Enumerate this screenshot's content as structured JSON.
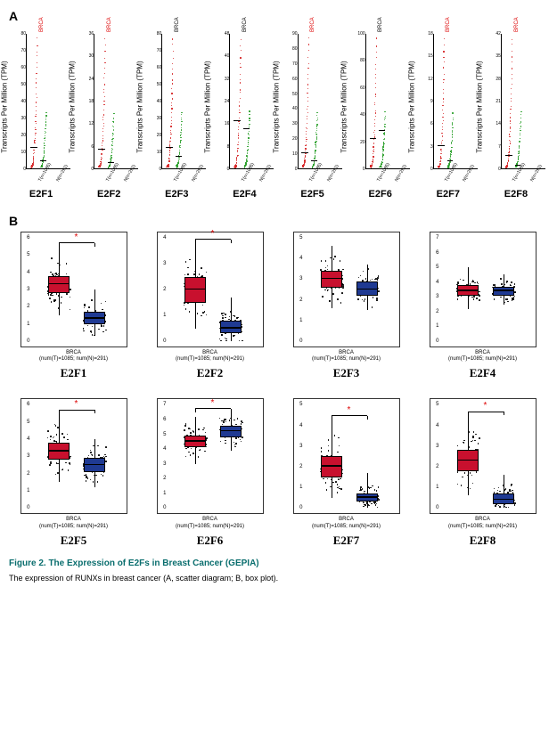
{
  "figure": {
    "title": "Figure 2. The Expression of E2Fs in Breast Cancer (GEPIA)",
    "description": "The expression of RUNXs in breast cancer (A, scatter diagram; B, box plot).",
    "title_color": "#0a6e6e"
  },
  "panelA": {
    "label": "A",
    "ylabel": "Transcripts Per Million (TPM)",
    "top_dataset": "BRCA",
    "xlabels": [
      "T(n=1085)",
      "N(n=291)"
    ],
    "tumor_color": "#d62728",
    "normal_color": "#2ca02c",
    "plots": [
      {
        "gene": "E2F1",
        "ymax": 80,
        "ystep": 10,
        "top_label_color": "#d00",
        "t_median": 12,
        "n_median": 4
      },
      {
        "gene": "E2F2",
        "ymax": 36,
        "ystep": 6,
        "top_label_color": "#d00",
        "t_median": 5,
        "n_median": 1.5
      },
      {
        "gene": "E2F3",
        "ymax": 80,
        "ystep": 10,
        "top_label_color": "#000",
        "t_median": 12,
        "n_median": 7
      },
      {
        "gene": "E2F4",
        "ymax": 48,
        "ystep": 8,
        "top_label_color": "#000",
        "t_median": 17,
        "n_median": 14
      },
      {
        "gene": "E2F5",
        "ymax": 90,
        "ystep": 10,
        "top_label_color": "#d00",
        "t_median": 10,
        "n_median": 5
      },
      {
        "gene": "E2F6",
        "ymax": 100,
        "ystep": 20,
        "top_label_color": "#000",
        "t_median": 22,
        "n_median": 28
      },
      {
        "gene": "E2F7",
        "ymax": 18,
        "ystep": 3,
        "top_label_color": "#d00",
        "t_median": 3,
        "n_median": 1
      },
      {
        "gene": "E2F8",
        "ymax": 42,
        "ystep": 7,
        "top_label_color": "#d00",
        "t_median": 4,
        "n_median": 0.8
      }
    ]
  },
  "panelB": {
    "label": "B",
    "caption_line1": "BRCA",
    "caption_line2": "(num(T)=1085; num(N)=291)",
    "tumor_color": "#c8102e",
    "normal_color": "#1f3a93",
    "plots": [
      {
        "gene": "E2F1",
        "ymax": 6,
        "ystep": 1,
        "significant": true,
        "t": {
          "q1": 2.8,
          "med": 3.3,
          "q3": 3.8,
          "min": 1.5,
          "max": 5.5
        },
        "n": {
          "q1": 1.0,
          "med": 1.3,
          "q3": 1.7,
          "min": 0.3,
          "max": 3.0
        }
      },
      {
        "gene": "E2F2",
        "ymax": 4,
        "ystep": 1,
        "significant": true,
        "t": {
          "q1": 1.5,
          "med": 2.0,
          "q3": 2.5,
          "min": 0.5,
          "max": 3.8
        },
        "n": {
          "q1": 0.3,
          "med": 0.5,
          "q3": 0.8,
          "min": 0.0,
          "max": 1.7
        }
      },
      {
        "gene": "E2F3",
        "ymax": 5,
        "ystep": 1,
        "significant": false,
        "t": {
          "q1": 2.6,
          "med": 3.0,
          "q3": 3.4,
          "min": 1.6,
          "max": 4.6
        },
        "n": {
          "q1": 2.2,
          "med": 2.5,
          "q3": 2.9,
          "min": 1.5,
          "max": 3.7
        }
      },
      {
        "gene": "E2F4",
        "ymax": 7,
        "ystep": 1,
        "significant": false,
        "t": {
          "q1": 3.1,
          "med": 3.4,
          "q3": 3.8,
          "min": 2.2,
          "max": 5.0
        },
        "n": {
          "q1": 3.1,
          "med": 3.4,
          "q3": 3.7,
          "min": 2.5,
          "max": 4.5
        }
      },
      {
        "gene": "E2F5",
        "ymax": 6,
        "ystep": 1,
        "significant": true,
        "t": {
          "q1": 2.8,
          "med": 3.3,
          "q3": 3.8,
          "min": 1.5,
          "max": 5.5
        },
        "n": {
          "q1": 2.1,
          "med": 2.5,
          "q3": 2.9,
          "min": 1.2,
          "max": 4.0
        }
      },
      {
        "gene": "E2F6",
        "ymax": 7,
        "ystep": 1,
        "significant": true,
        "t": {
          "q1": 4.1,
          "med": 4.5,
          "q3": 4.9,
          "min": 3.0,
          "max": 6.2
        },
        "n": {
          "q1": 4.8,
          "med": 5.2,
          "q3": 5.6,
          "min": 3.9,
          "max": 6.5
        }
      },
      {
        "gene": "E2F7",
        "ymax": 5,
        "ystep": 1,
        "significant": true,
        "t": {
          "q1": 1.5,
          "med": 2.0,
          "q3": 2.5,
          "min": 0.5,
          "max": 4.3
        },
        "n": {
          "q1": 0.3,
          "med": 0.5,
          "q3": 0.7,
          "min": 0.0,
          "max": 1.7
        }
      },
      {
        "gene": "E2F8",
        "ymax": 5,
        "ystep": 1,
        "significant": true,
        "t": {
          "q1": 1.8,
          "med": 2.3,
          "q3": 2.8,
          "min": 0.6,
          "max": 4.5
        },
        "n": {
          "q1": 0.2,
          "med": 0.4,
          "q3": 0.7,
          "min": 0.0,
          "max": 1.6
        }
      }
    ]
  }
}
